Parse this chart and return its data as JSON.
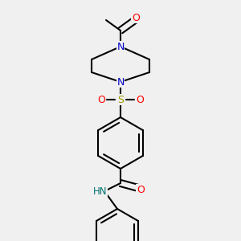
{
  "bg_color": "#f0f0f0",
  "atom_colors": {
    "C": "#000000",
    "N": "#0000cc",
    "O": "#ff0000",
    "S": "#999900",
    "H": "#007070"
  },
  "line_color": "#000000",
  "line_width": 1.5,
  "figsize": [
    3.0,
    3.0
  ],
  "dpi": 100
}
